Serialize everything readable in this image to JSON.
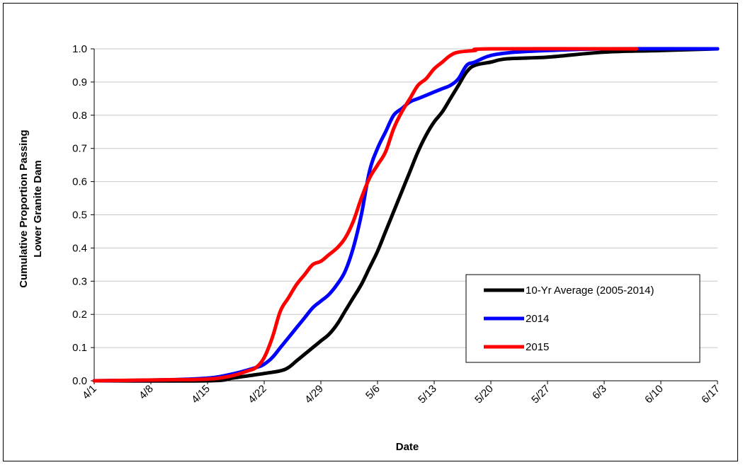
{
  "chart_data": {
    "type": "line",
    "xlabel": "Date",
    "ylabel_lines": [
      "Cumulative Proportion Passing",
      "Lower Granite Dam"
    ],
    "x_tick_labels": [
      "4/1",
      "4/8",
      "4/15",
      "4/22",
      "4/29",
      "5/6",
      "5/13",
      "5/20",
      "5/27",
      "6/3",
      "6/10",
      "6/17"
    ],
    "xlim": [
      "4/1",
      "6/17"
    ],
    "ylim": [
      0,
      1
    ],
    "y_ticks": [
      "0.0",
      "0.1",
      "0.2",
      "0.3",
      "0.4",
      "0.5",
      "0.6",
      "0.7",
      "0.8",
      "0.9",
      "1.0"
    ],
    "grid": "horizontal",
    "legend_position": "bottom-right",
    "series": [
      {
        "name": "10-Yr Average (2005-2014)",
        "color": "#000000",
        "points": [
          [
            "4/1",
            0
          ],
          [
            "4/15",
            0.0
          ],
          [
            "4/18",
            0.008
          ],
          [
            "4/20",
            0.015
          ],
          [
            "4/22",
            0.022
          ],
          [
            "4/24",
            0.03
          ],
          [
            "4/25",
            0.04
          ],
          [
            "4/26",
            0.06
          ],
          [
            "4/27",
            0.08
          ],
          [
            "4/28",
            0.1
          ],
          [
            "4/29",
            0.12
          ],
          [
            "4/30",
            0.14
          ],
          [
            "5/1",
            0.17
          ],
          [
            "5/2",
            0.21
          ],
          [
            "5/3",
            0.25
          ],
          [
            "5/4",
            0.29
          ],
          [
            "5/5",
            0.34
          ],
          [
            "5/6",
            0.39
          ],
          [
            "5/7",
            0.45
          ],
          [
            "5/8",
            0.51
          ],
          [
            "5/9",
            0.57
          ],
          [
            "5/10",
            0.63
          ],
          [
            "5/11",
            0.69
          ],
          [
            "5/12",
            0.74
          ],
          [
            "5/13",
            0.78
          ],
          [
            "5/14",
            0.81
          ],
          [
            "5/15",
            0.85
          ],
          [
            "5/16",
            0.89
          ],
          [
            "5/17",
            0.93
          ],
          [
            "5/18",
            0.95
          ],
          [
            "5/20",
            0.96
          ],
          [
            "5/22",
            0.97
          ],
          [
            "5/27",
            0.975
          ],
          [
            "6/3",
            0.99
          ],
          [
            "6/10",
            0.995
          ],
          [
            "6/17",
            1.0
          ]
        ]
      },
      {
        "name": "2014",
        "color": "#0000ff",
        "points": [
          [
            "4/1",
            0
          ],
          [
            "4/10",
            0.003
          ],
          [
            "4/15",
            0.008
          ],
          [
            "4/18",
            0.02
          ],
          [
            "4/21",
            0.04
          ],
          [
            "4/22",
            0.05
          ],
          [
            "4/23",
            0.07
          ],
          [
            "4/24",
            0.1
          ],
          [
            "4/25",
            0.13
          ],
          [
            "4/26",
            0.16
          ],
          [
            "4/27",
            0.19
          ],
          [
            "4/28",
            0.22
          ],
          [
            "4/29",
            0.24
          ],
          [
            "4/30",
            0.26
          ],
          [
            "5/1",
            0.29
          ],
          [
            "5/2",
            0.33
          ],
          [
            "5/3",
            0.4
          ],
          [
            "5/4",
            0.5
          ],
          [
            "5/5",
            0.63
          ],
          [
            "5/6",
            0.7
          ],
          [
            "5/7",
            0.75
          ],
          [
            "5/8",
            0.8
          ],
          [
            "5/9",
            0.82
          ],
          [
            "5/10",
            0.84
          ],
          [
            "5/11",
            0.85
          ],
          [
            "5/12",
            0.86
          ],
          [
            "5/13",
            0.87
          ],
          [
            "5/14",
            0.88
          ],
          [
            "5/15",
            0.89
          ],
          [
            "5/16",
            0.91
          ],
          [
            "5/17",
            0.95
          ],
          [
            "5/18",
            0.96
          ],
          [
            "5/20",
            0.98
          ],
          [
            "5/23",
            0.99
          ],
          [
            "5/27",
            0.995
          ],
          [
            "6/3",
            1.0
          ],
          [
            "6/17",
            1.0
          ]
        ]
      },
      {
        "name": "2015",
        "color": "#ff0000",
        "points": [
          [
            "4/1",
            0
          ],
          [
            "4/10",
            0.003
          ],
          [
            "4/15",
            0.005
          ],
          [
            "4/18",
            0.015
          ],
          [
            "4/20",
            0.03
          ],
          [
            "4/21",
            0.04
          ],
          [
            "4/22",
            0.07
          ],
          [
            "4/23",
            0.13
          ],
          [
            "4/24",
            0.21
          ],
          [
            "4/25",
            0.25
          ],
          [
            "4/26",
            0.29
          ],
          [
            "4/27",
            0.32
          ],
          [
            "4/28",
            0.35
          ],
          [
            "4/29",
            0.36
          ],
          [
            "4/30",
            0.38
          ],
          [
            "5/1",
            0.4
          ],
          [
            "5/2",
            0.43
          ],
          [
            "5/3",
            0.48
          ],
          [
            "5/4",
            0.55
          ],
          [
            "5/5",
            0.61
          ],
          [
            "5/6",
            0.65
          ],
          [
            "5/7",
            0.69
          ],
          [
            "5/8",
            0.76
          ],
          [
            "5/9",
            0.81
          ],
          [
            "5/10",
            0.85
          ],
          [
            "5/11",
            0.89
          ],
          [
            "5/12",
            0.91
          ],
          [
            "5/13",
            0.94
          ],
          [
            "5/14",
            0.96
          ],
          [
            "5/15",
            0.98
          ],
          [
            "5/16",
            0.99
          ],
          [
            "5/18",
            0.995
          ],
          [
            "5/20",
            1.0
          ],
          [
            "6/7",
            1.0
          ]
        ]
      }
    ]
  }
}
